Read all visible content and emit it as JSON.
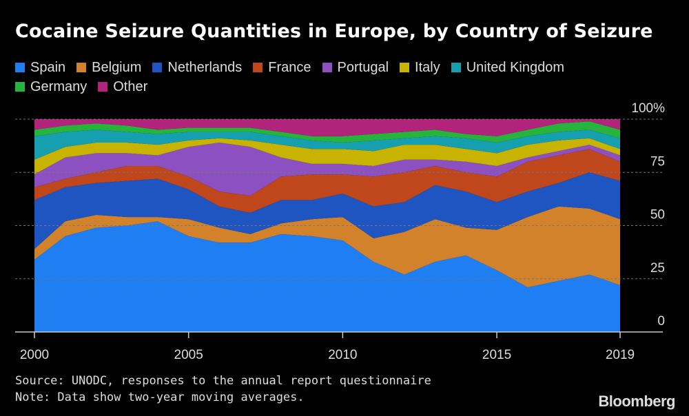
{
  "chart_data": {
    "type": "area",
    "stacked": "percent",
    "title": "Cocaine Seizure Quantities in Europe, by Country of Seizure",
    "x": [
      2000,
      2001,
      2002,
      2003,
      2004,
      2005,
      2006,
      2007,
      2008,
      2009,
      2010,
      2011,
      2012,
      2013,
      2014,
      2015,
      2016,
      2017,
      2018,
      2019
    ],
    "x_ticks": [
      "2000",
      "2005",
      "2010",
      "2015",
      "2019"
    ],
    "y_ticks": [
      "0",
      "25",
      "50",
      "75",
      "100%"
    ],
    "ylim": [
      0,
      100
    ],
    "grid": "horizontal dashed",
    "legend_position": "top",
    "series": [
      {
        "name": "Spain",
        "color": "#1f7ef2",
        "values": [
          34,
          45,
          49,
          50,
          52,
          45,
          42,
          42,
          46,
          45,
          43,
          33,
          27,
          33,
          36,
          29,
          21,
          24,
          27,
          22
        ]
      },
      {
        "name": "Belgium",
        "color": "#d2822a",
        "values": [
          5,
          7,
          6,
          4,
          2,
          8,
          7,
          4,
          5,
          8,
          11,
          11,
          20,
          20,
          13,
          19,
          33,
          35,
          31,
          31
        ]
      },
      {
        "name": "Netherlands",
        "color": "#1f55c0",
        "values": [
          23,
          16,
          15,
          17,
          18,
          14,
          10,
          10,
          11,
          9,
          11,
          15,
          14,
          16,
          17,
          13,
          12,
          11,
          17,
          18
        ]
      },
      {
        "name": "France",
        "color": "#c0461b",
        "values": [
          6,
          4,
          5,
          7,
          6,
          6,
          7,
          8,
          11,
          12,
          9,
          14,
          14,
          9,
          9,
          12,
          14,
          13,
          11,
          9
        ]
      },
      {
        "name": "Portugal",
        "color": "#8c50c0",
        "values": [
          6,
          10,
          9,
          6,
          5,
          14,
          23,
          23,
          9,
          5,
          5,
          5,
          6,
          3,
          5,
          5,
          2,
          2,
          2,
          3
        ]
      },
      {
        "name": "Italy",
        "color": "#c8b400",
        "values": [
          7,
          5,
          5,
          5,
          5,
          3,
          2,
          3,
          6,
          7,
          7,
          7,
          7,
          7,
          6,
          6,
          6,
          5,
          3,
          3
        ]
      },
      {
        "name": "United Kingdom",
        "color": "#169fae",
        "values": [
          11,
          7,
          6,
          5,
          5,
          4,
          3,
          4,
          4,
          4,
          3,
          5,
          3,
          4,
          5,
          5,
          4,
          4,
          4,
          5
        ]
      },
      {
        "name": "Germany",
        "color": "#28b43c",
        "values": [
          3,
          3,
          3,
          3,
          2,
          2,
          2,
          2,
          2,
          2,
          3,
          3,
          3,
          3,
          2,
          3,
          3,
          4,
          4,
          4
        ]
      },
      {
        "name": "Other",
        "color": "#b2237c",
        "values": [
          5,
          3,
          2,
          3,
          5,
          4,
          4,
          4,
          6,
          8,
          8,
          7,
          6,
          5,
          7,
          8,
          5,
          2,
          1,
          5
        ]
      }
    ]
  },
  "footer": {
    "source": "Source: UNODC, responses to the annual report questionnaire",
    "note": "Note: Data show two-year moving averages.",
    "brand": "Bloomberg"
  }
}
